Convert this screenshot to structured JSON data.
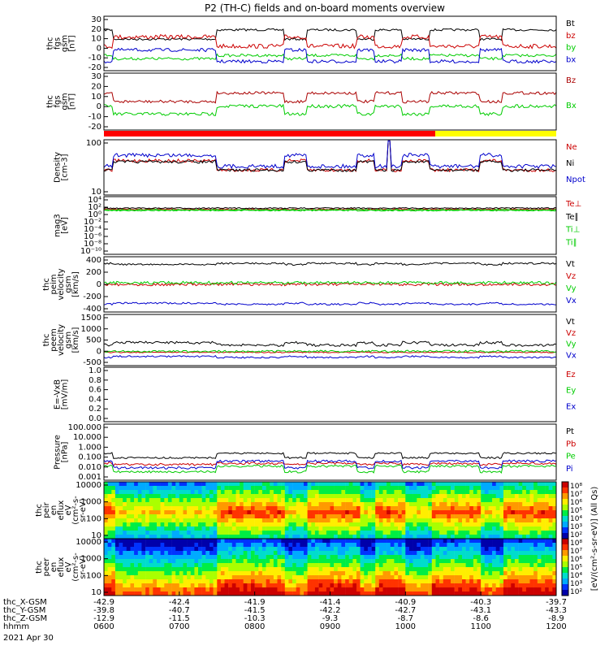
{
  "title": "P2 (TH-C) fields and on-board moments overview",
  "time_axis": {
    "rows": [
      {
        "label": "thc_X-GSM",
        "values": [
          "-42.9",
          "-42.4",
          "-41.9",
          "-41.4",
          "-40.9",
          "-40.3",
          "-39.7"
        ]
      },
      {
        "label": "thc_Y-GSM",
        "values": [
          "-39.8",
          "-40.7",
          "-41.5",
          "-42.2",
          "-42.7",
          "-43.1",
          "-43.3"
        ]
      },
      {
        "label": "thc_Z-GSM",
        "values": [
          "-12.9",
          "-11.5",
          "-10.3",
          "-9.3",
          "-8.7",
          "-8.6",
          "-8.9"
        ]
      },
      {
        "label": "hhmm",
        "values": [
          "0600",
          "0700",
          "0800",
          "0900",
          "1000",
          "1100",
          "1200"
        ]
      }
    ],
    "date": "2021 Apr 30"
  },
  "chart_data": [
    {
      "type": "line",
      "ylabel": [
        "thc",
        "fgs",
        "gsm",
        "[nT]"
      ],
      "ylim": [
        -20,
        30
      ],
      "ticks": [
        "30",
        "20",
        "10",
        "0",
        "-10",
        "-20"
      ],
      "series": [
        {
          "name": "Bt",
          "color": "#000000"
        },
        {
          "name": "bz",
          "color": "#cc0000"
        },
        {
          "name": "by",
          "color": "#00cc00"
        },
        {
          "name": "bx",
          "color": "#0000cc"
        }
      ]
    },
    {
      "type": "line",
      "ylabel": [
        "thc",
        "fgs",
        "gsm",
        "[nT]"
      ],
      "ylim": [
        -20,
        30
      ],
      "ticks": [
        "30",
        "20",
        "10",
        "0",
        "-10",
        "-20"
      ],
      "series": [
        {
          "name": "Bz",
          "color": "#aa0000"
        },
        {
          "name": "Bx",
          "color": "#00cc00"
        }
      ]
    },
    {
      "type": "line",
      "ylabel": [
        "Density",
        "[cm-3]"
      ],
      "ylim": [
        1,
        200
      ],
      "scale": "log",
      "ticks": [
        "100",
        "10"
      ],
      "series": [
        {
          "name": "Ne",
          "color": "#cc0000"
        },
        {
          "name": "Ni",
          "color": "#000000"
        },
        {
          "name": "Npot",
          "color": "#0000cc"
        }
      ]
    },
    {
      "type": "line",
      "ylabel": [
        "mag3",
        "[eV]"
      ],
      "scale": "log",
      "ticks": [
        "10⁴",
        "10²",
        "10⁰",
        "10⁻²",
        "10⁻⁴",
        "10⁻⁶",
        "10⁻⁸",
        "10⁻¹⁰"
      ],
      "series": [
        {
          "name": "Te⊥",
          "color": "#cc0000"
        },
        {
          "name": "Te∥",
          "color": "#000000"
        },
        {
          "name": "Ti⊥",
          "color": "#00cc00"
        },
        {
          "name": "Ti∥",
          "color": "#00cc00"
        }
      ]
    },
    {
      "type": "line",
      "ylabel": [
        "thc",
        "peim",
        "velocity",
        "gsm",
        "[km/s]"
      ],
      "ylim": [
        -400,
        400
      ],
      "ticks": [
        "400",
        "200",
        "0",
        "-200",
        "-400"
      ],
      "series": [
        {
          "name": "Vt",
          "color": "#000000"
        },
        {
          "name": "Vz",
          "color": "#cc0000"
        },
        {
          "name": "Vy",
          "color": "#00cc00"
        },
        {
          "name": "Vx",
          "color": "#0000cc"
        }
      ]
    },
    {
      "type": "line",
      "ylabel": [
        "thc",
        "peem",
        "velocity",
        "gsm",
        "[km/s]"
      ],
      "ylim": [
        -500,
        1500
      ],
      "ticks": [
        "1500",
        "1000",
        "500",
        "0",
        "-500"
      ],
      "series": [
        {
          "name": "Vt",
          "color": "#000000"
        },
        {
          "name": "Vz",
          "color": "#cc0000"
        },
        {
          "name": "Vy",
          "color": "#00cc00"
        },
        {
          "name": "Vx",
          "color": "#0000cc"
        }
      ]
    },
    {
      "type": "line",
      "ylabel": [
        "E=-VxB",
        "[mV/m]"
      ],
      "ylim": [
        0,
        1
      ],
      "ticks": [
        "1.0",
        "0.8",
        "0.6",
        "0.4",
        "0.2",
        "0.0"
      ],
      "series": [
        {
          "name": "Ez",
          "color": "#cc0000"
        },
        {
          "name": "Ey",
          "color": "#00cc00"
        },
        {
          "name": "Ex",
          "color": "#0000cc"
        }
      ]
    },
    {
      "type": "line",
      "ylabel": [
        "Pressure",
        "[nPa]"
      ],
      "scale": "log",
      "ticks": [
        "100.000",
        "10.000",
        "1.000",
        "0.100",
        "0.010",
        "0.001"
      ],
      "series": [
        {
          "name": "Pt",
          "color": "#000000"
        },
        {
          "name": "Pb",
          "color": "#cc0000"
        },
        {
          "name": "Pe",
          "color": "#00cc00"
        },
        {
          "name": "Pi",
          "color": "#0000cc"
        }
      ]
    },
    {
      "type": "heatmap",
      "ylabel": [
        "thc",
        "peir",
        "en",
        "eflux",
        "eV",
        "(cm²-s-",
        "sr-eV)"
      ],
      "scale": "log",
      "ticks": [
        "10000",
        "1000",
        "100",
        "10"
      ]
    },
    {
      "type": "heatmap",
      "ylabel": [
        "thc",
        "peer",
        "en",
        "eflux",
        "eV",
        "(cm²-s-",
        "sr-eV)"
      ],
      "scale": "log",
      "ticks": [
        "10000",
        "1000",
        "100",
        "10"
      ]
    }
  ],
  "colorbars": [
    {
      "ticks": [
        "10⁸",
        "10⁷",
        "10⁶",
        "10⁵",
        "10⁴",
        "10³",
        "10²"
      ]
    },
    {
      "ticks": [
        "10⁸",
        "10⁷",
        "10⁶",
        "10⁵",
        "10⁴",
        "10³",
        "10²"
      ]
    }
  ],
  "colorbar_label": "[eV/(cm²-s-sr-eV)] (All Qs)",
  "state_bar": {
    "colors": [
      "#ff0000",
      "#ffff00"
    ]
  }
}
